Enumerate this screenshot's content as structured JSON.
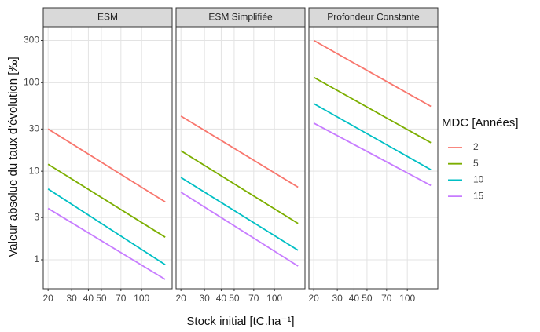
{
  "shared": {
    "x_label": "Stock initial [tC.ha⁻¹]",
    "y_label": "Valeur absolue du taux d'évolution [‰]",
    "legend_title": "MDC [Années]"
  },
  "chart_data": [
    {
      "type": "line",
      "title": "ESM",
      "x": [
        20,
        150
      ],
      "xlim": [
        18.4,
        169
      ],
      "ylim": [
        0.47,
        420
      ],
      "log_x": true,
      "log_y": true,
      "grid": true,
      "xticks": [
        20,
        30,
        40,
        50,
        70,
        100
      ],
      "yticks": [
        1,
        3,
        10,
        30,
        100,
        300
      ],
      "series": [
        {
          "name": "2",
          "color": "#F8766D",
          "values": [
            30,
            4.5
          ]
        },
        {
          "name": "5",
          "color": "#7CAE00",
          "values": [
            12,
            1.8
          ]
        },
        {
          "name": "10",
          "color": "#00BFC4",
          "values": [
            6.3,
            0.88
          ]
        },
        {
          "name": "15",
          "color": "#C77CFF",
          "values": [
            3.8,
            0.6
          ]
        }
      ]
    },
    {
      "type": "line",
      "title": "ESM Simplifiée",
      "x": [
        20,
        150
      ],
      "xlim": [
        18.4,
        169
      ],
      "ylim": [
        0.47,
        420
      ],
      "log_x": true,
      "log_y": true,
      "grid": true,
      "xticks": [
        20,
        30,
        40,
        50,
        70,
        100
      ],
      "yticks": [
        1,
        3,
        10,
        30,
        100,
        300
      ],
      "series": [
        {
          "name": "2",
          "color": "#F8766D",
          "values": [
            42,
            6.6
          ]
        },
        {
          "name": "5",
          "color": "#7CAE00",
          "values": [
            17,
            2.57
          ]
        },
        {
          "name": "10",
          "color": "#00BFC4",
          "values": [
            8.5,
            1.28
          ]
        },
        {
          "name": "15",
          "color": "#C77CFF",
          "values": [
            5.8,
            0.85
          ]
        }
      ]
    },
    {
      "type": "line",
      "title": "Profondeur Constante",
      "x": [
        20,
        150
      ],
      "xlim": [
        18.4,
        169
      ],
      "ylim": [
        0.47,
        420
      ],
      "log_x": true,
      "log_y": true,
      "grid": true,
      "xticks": [
        20,
        30,
        40,
        50,
        70,
        100
      ],
      "yticks": [
        1,
        3,
        10,
        30,
        100,
        300
      ],
      "series": [
        {
          "name": "2",
          "color": "#F8766D",
          "values": [
            300,
            54
          ]
        },
        {
          "name": "5",
          "color": "#7CAE00",
          "values": [
            115,
            21
          ]
        },
        {
          "name": "10",
          "color": "#00BFC4",
          "values": [
            58,
            10.4
          ]
        },
        {
          "name": "15",
          "color": "#C77CFF",
          "values": [
            35,
            6.9
          ]
        }
      ]
    }
  ]
}
